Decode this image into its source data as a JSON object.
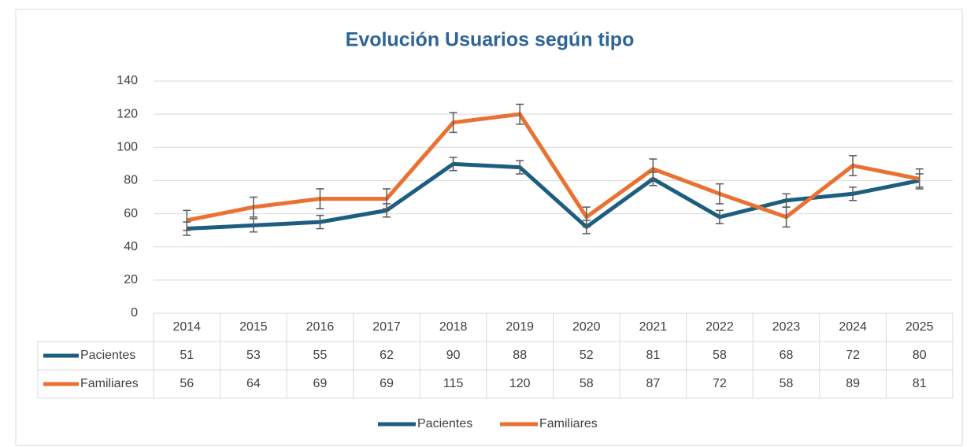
{
  "chart_data": {
    "type": "line",
    "title": "Evolución Usuarios según tipo",
    "categories": [
      "2014",
      "2015",
      "2016",
      "2017",
      "2018",
      "2019",
      "2020",
      "2021",
      "2022",
      "2023",
      "2024",
      "2025"
    ],
    "series": [
      {
        "name": "Pacientes",
        "color": "#1d5e80",
        "error": 4,
        "values": [
          51,
          53,
          55,
          62,
          90,
          88,
          52,
          81,
          58,
          68,
          72,
          80
        ]
      },
      {
        "name": "Familiares",
        "color": "#e97132",
        "error": 6,
        "values": [
          56,
          64,
          69,
          69,
          115,
          120,
          58,
          87,
          72,
          58,
          89,
          81
        ]
      }
    ],
    "ylim": [
      0,
      140
    ],
    "yticks": [
      0,
      20,
      40,
      60,
      80,
      100,
      120,
      140
    ],
    "grid": true,
    "legend": "bottom"
  }
}
